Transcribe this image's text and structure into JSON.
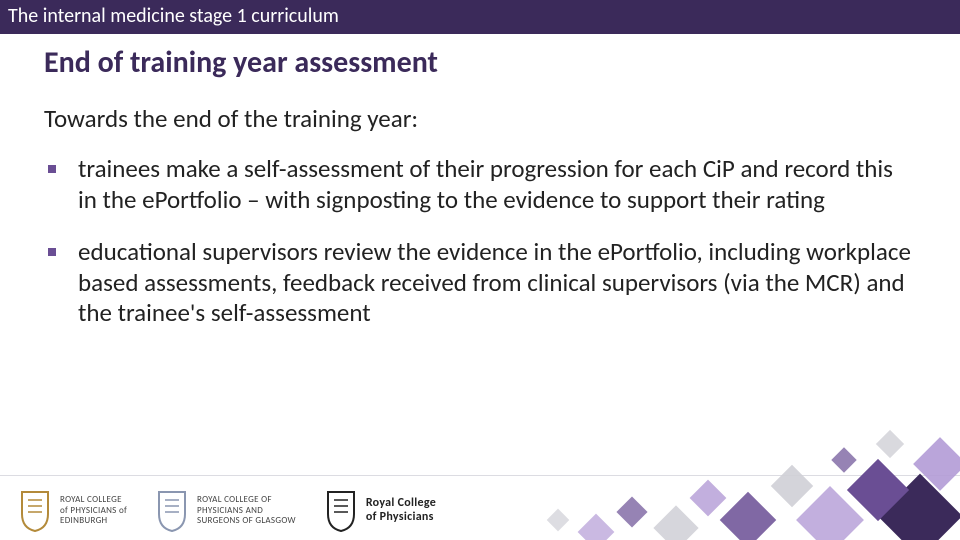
{
  "colors": {
    "title_bar_bg": "#3b2a5a",
    "title_bar_text": "#ffffff",
    "heading_text": "#3b2a5a",
    "body_text": "#222222",
    "bullet_square": "#6a4e94",
    "accent_light": "#b39bd6",
    "accent_mid": "#6a4e94",
    "accent_dark": "#3b2a5a",
    "grey_square": "#cfcfd6"
  },
  "title_bar": "The internal medicine stage 1 curriculum",
  "heading": "End of training year assessment",
  "intro": "Towards the end of the training year:",
  "bullets": [
    "trainees make a self-assessment of their progression for each CiP and record this in the ePortfolio – with signposting to the evidence to support their rating",
    "educational supervisors review the evidence in the ePortfolio, including workplace based assessments, feedback received from clinical supervisors (via the MCR) and the trainee's self-assessment"
  ],
  "logos": [
    {
      "lines": [
        "ROYAL COLLEGE",
        "of PHYSICIANS of",
        "EDINBURGH"
      ],
      "crest_color": "#b38a3a"
    },
    {
      "lines": [
        "ROYAL COLLEGE OF",
        "PHYSICIANS AND",
        "SURGEONS OF GLASGOW"
      ],
      "crest_color": "#8a96b0"
    },
    {
      "lines": [
        "Royal College",
        "of Physicians"
      ],
      "crest_color": "#222222"
    }
  ]
}
